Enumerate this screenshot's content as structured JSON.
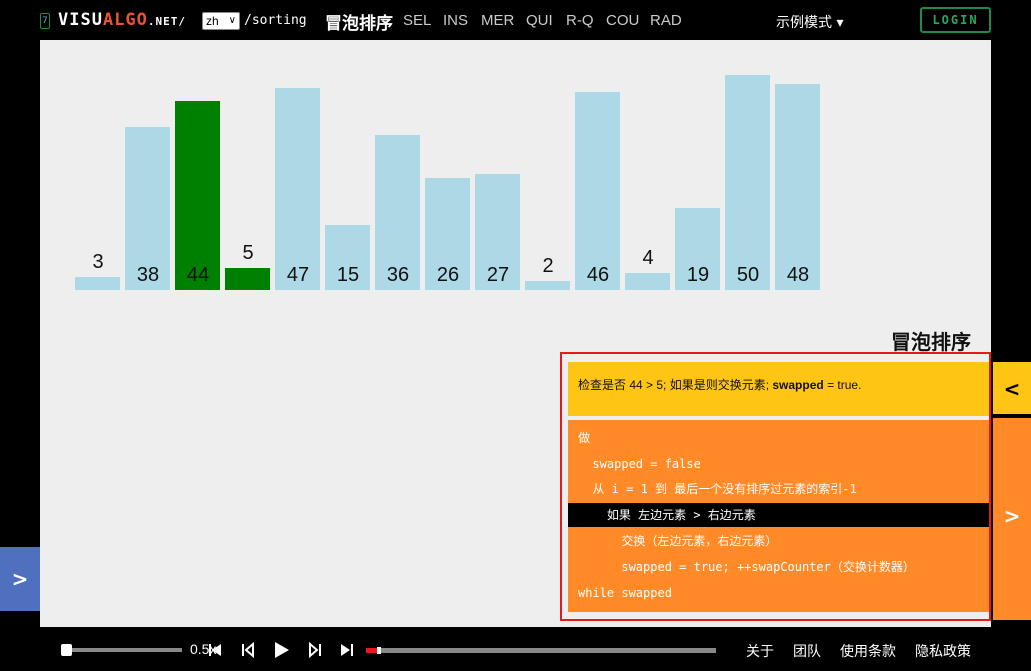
{
  "header": {
    "logo_badge": "7",
    "logo_visu": "VISU",
    "logo_algo": "ALGO",
    "logo_net": ".NET",
    "logo_slash": "/",
    "language": "zh",
    "path": "/sorting",
    "algorithm_title": "冒泡排序",
    "nav": [
      "SEL",
      "INS",
      "MER",
      "QUI",
      "R-Q",
      "COU",
      "RAD"
    ],
    "mode": "示例模式 ▾",
    "login": "LOGIN"
  },
  "chart_data": {
    "type": "bar",
    "categories": [
      "3",
      "38",
      "44",
      "5",
      "47",
      "15",
      "36",
      "26",
      "27",
      "2",
      "46",
      "4",
      "19",
      "50",
      "48"
    ],
    "values": [
      3,
      38,
      44,
      5,
      47,
      15,
      36,
      26,
      27,
      2,
      46,
      4,
      19,
      50,
      48
    ],
    "highlighted": [
      2,
      3
    ],
    "colors": {
      "normal": "#add8e6",
      "compare": "#008000"
    }
  },
  "canvas": {
    "heading": "冒泡排序"
  },
  "panel": {
    "status_prefix": "检查是否 44 > 5; 如果是则交换元素; ",
    "status_bold": "swapped",
    "status_suffix": " = true.",
    "code_lines": [
      "做",
      "  swapped = false",
      "  从 i = 1 到 最后一个没有排序过元素的索引-1",
      "    如果 左边元素 > 右边元素",
      "      交换（左边元素，右边元素）",
      "      swapped = true; ++swapCounter（交换计数器）",
      "while swapped"
    ],
    "active_line": 3
  },
  "side": {
    "collapse": "<",
    "code_toggle": ">",
    "left_toggle": ">"
  },
  "footer": {
    "speed": "0.5x",
    "progress": 0.04,
    "links": [
      "关于",
      "团队",
      "使用条款",
      "隐私政策"
    ]
  }
}
